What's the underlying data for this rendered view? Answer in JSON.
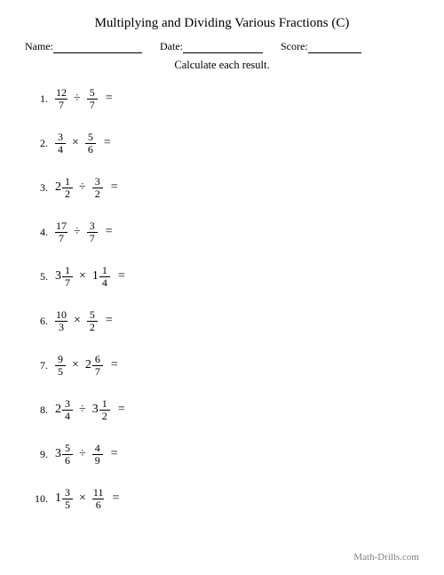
{
  "title": "Multiplying and Dividing Various Fractions (C)",
  "labels": {
    "name": "Name:",
    "date": "Date:",
    "score": "Score:"
  },
  "instruction": "Calculate each result.",
  "equals": "=",
  "ops": {
    "times": "×",
    "div": "÷"
  },
  "line_widths": {
    "name": 100,
    "date": 90,
    "score": 60
  },
  "problems": [
    {
      "num": "1.",
      "a": {
        "w": null,
        "n": "12",
        "d": "7"
      },
      "op": "div",
      "b": {
        "w": null,
        "n": "5",
        "d": "7"
      }
    },
    {
      "num": "2.",
      "a": {
        "w": null,
        "n": "3",
        "d": "4"
      },
      "op": "times",
      "b": {
        "w": null,
        "n": "5",
        "d": "6"
      }
    },
    {
      "num": "3.",
      "a": {
        "w": "2",
        "n": "1",
        "d": "2"
      },
      "op": "div",
      "b": {
        "w": null,
        "n": "3",
        "d": "2"
      }
    },
    {
      "num": "4.",
      "a": {
        "w": null,
        "n": "17",
        "d": "7"
      },
      "op": "div",
      "b": {
        "w": null,
        "n": "3",
        "d": "7"
      }
    },
    {
      "num": "5.",
      "a": {
        "w": "3",
        "n": "1",
        "d": "7"
      },
      "op": "times",
      "b": {
        "w": "1",
        "n": "1",
        "d": "4"
      }
    },
    {
      "num": "6.",
      "a": {
        "w": null,
        "n": "10",
        "d": "3"
      },
      "op": "times",
      "b": {
        "w": null,
        "n": "5",
        "d": "2"
      }
    },
    {
      "num": "7.",
      "a": {
        "w": null,
        "n": "9",
        "d": "5"
      },
      "op": "times",
      "b": {
        "w": "2",
        "n": "6",
        "d": "7"
      }
    },
    {
      "num": "8.",
      "a": {
        "w": "2",
        "n": "3",
        "d": "4"
      },
      "op": "div",
      "b": {
        "w": "3",
        "n": "1",
        "d": "2"
      }
    },
    {
      "num": "9.",
      "a": {
        "w": "3",
        "n": "5",
        "d": "6"
      },
      "op": "div",
      "b": {
        "w": null,
        "n": "4",
        "d": "9"
      }
    },
    {
      "num": "10.",
      "a": {
        "w": "1",
        "n": "3",
        "d": "5"
      },
      "op": "times",
      "b": {
        "w": null,
        "n": "11",
        "d": "6"
      }
    }
  ],
  "footer": "Math-Drills.com",
  "colors": {
    "text": "#000000",
    "bg": "#ffffff",
    "footer": "#808080"
  }
}
